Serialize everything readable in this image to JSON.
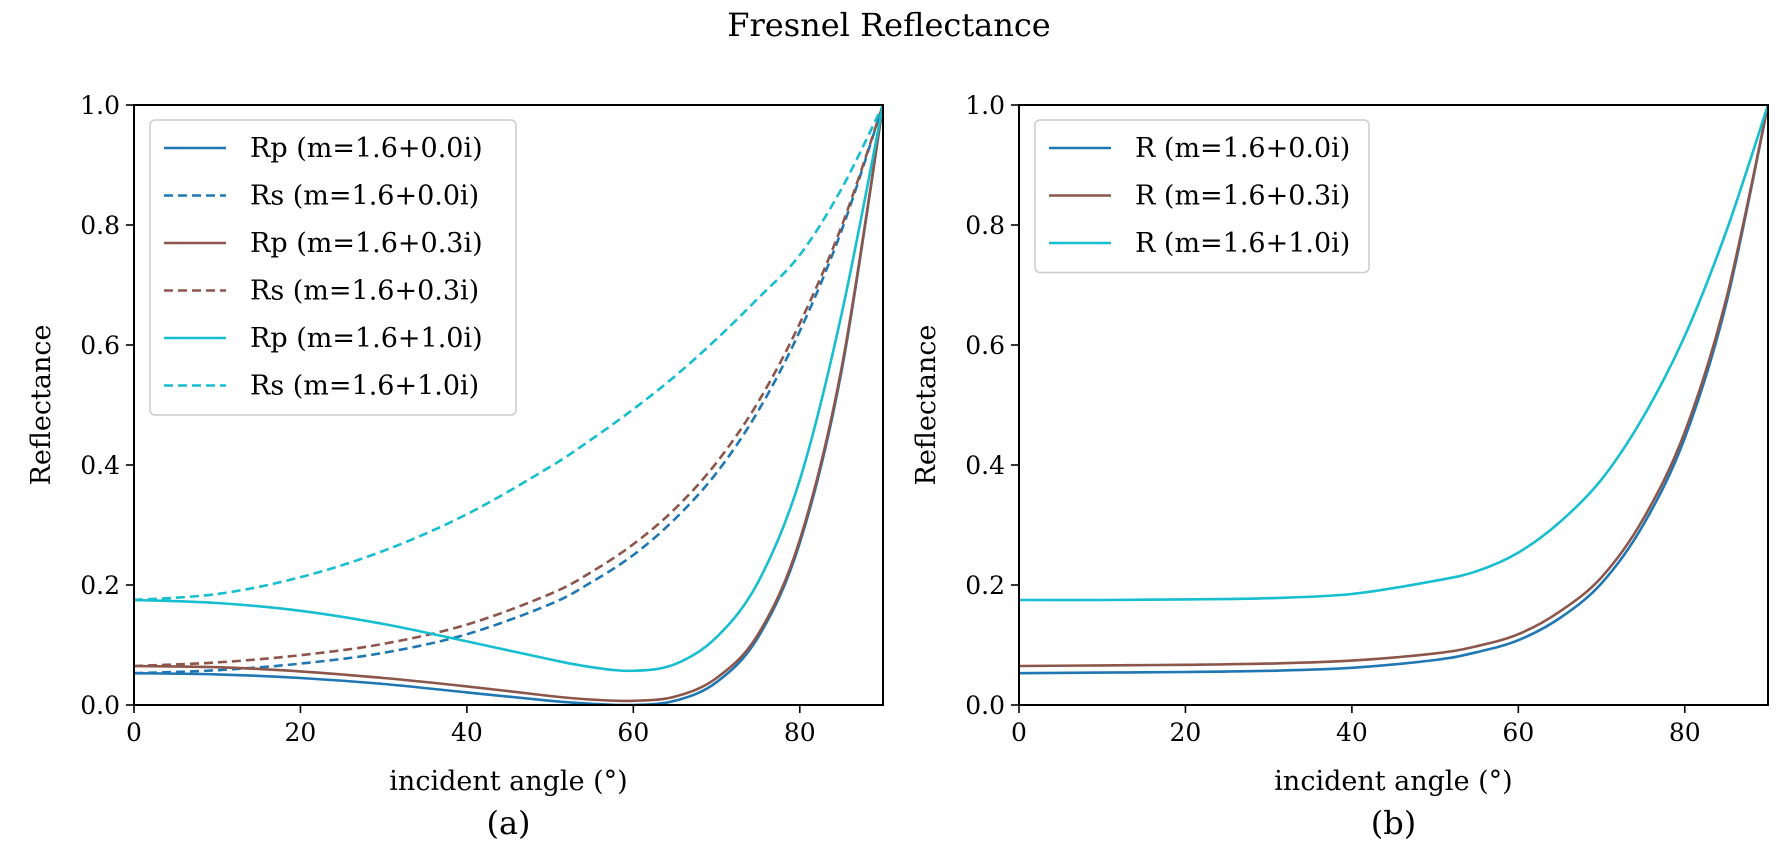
{
  "title": "Fresnel Reflectance",
  "colors": {
    "m_1_6_0_0": "#1f77b4",
    "m_1_6_0_3": "#8c564b",
    "m_1_6_1_0": "#17becf"
  },
  "chart_data": [
    {
      "type": "line",
      "panel_label": "(a)",
      "xlabel": "incident angle (°)",
      "ylabel": "Reflectance",
      "xlim": [
        0,
        90
      ],
      "ylim": [
        0,
        1
      ],
      "xticks": [
        "0",
        "20",
        "40",
        "60",
        "80"
      ],
      "yticks": [
        "0.0",
        "0.2",
        "0.4",
        "0.6",
        "0.8",
        "1.0"
      ],
      "grid": false,
      "legend_position": "top-left",
      "x": [
        0,
        10,
        20,
        30,
        40,
        50,
        55,
        60,
        65,
        70,
        75,
        80,
        85,
        90
      ],
      "series": [
        {
          "name": "Rp (m=1.6+0.0i)",
          "style": "solid",
          "color_key": "m_1_6_0_0",
          "values": [
            0.053,
            0.051,
            0.045,
            0.035,
            0.021,
            0.007,
            0.002,
            0.0,
            0.007,
            0.038,
            0.113,
            0.27,
            0.555,
            1.0
          ]
        },
        {
          "name": "Rs (m=1.6+0.0i)",
          "style": "dashed",
          "color_key": "m_1_6_0_0",
          "values": [
            0.053,
            0.058,
            0.069,
            0.087,
            0.118,
            0.168,
            0.205,
            0.25,
            0.31,
            0.387,
            0.49,
            0.623,
            0.79,
            1.0
          ]
        },
        {
          "name": "Rp (m=1.6+0.3i)",
          "style": "solid",
          "color_key": "m_1_6_0_3",
          "values": [
            0.065,
            0.063,
            0.056,
            0.045,
            0.031,
            0.015,
            0.009,
            0.007,
            0.014,
            0.045,
            0.118,
            0.275,
            0.56,
            1.0
          ]
        },
        {
          "name": "Rs (m=1.6+0.3i)",
          "style": "dashed",
          "color_key": "m_1_6_0_3",
          "values": [
            0.065,
            0.071,
            0.083,
            0.102,
            0.134,
            0.185,
            0.222,
            0.268,
            0.327,
            0.404,
            0.505,
            0.636,
            0.797,
            1.0
          ]
        },
        {
          "name": "Rp (m=1.6+1.0i)",
          "style": "solid",
          "color_key": "m_1_6_1_0",
          "values": [
            0.175,
            0.17,
            0.157,
            0.135,
            0.106,
            0.076,
            0.063,
            0.057,
            0.068,
            0.113,
            0.205,
            0.375,
            0.65,
            1.0
          ]
        },
        {
          "name": "Rs (m=1.6+1.0i)",
          "style": "dashed",
          "color_key": "m_1_6_1_0",
          "values": [
            0.175,
            0.185,
            0.213,
            0.257,
            0.318,
            0.397,
            0.443,
            0.493,
            0.548,
            0.61,
            0.678,
            0.75,
            0.86,
            1.0
          ]
        }
      ]
    },
    {
      "type": "line",
      "panel_label": "(b)",
      "xlabel": "incident angle (°)",
      "ylabel": "Reflectance",
      "xlim": [
        0,
        90
      ],
      "ylim": [
        0,
        1
      ],
      "xticks": [
        "0",
        "20",
        "40",
        "60",
        "80"
      ],
      "yticks": [
        "0.0",
        "0.2",
        "0.4",
        "0.6",
        "0.8",
        "1.0"
      ],
      "grid": false,
      "legend_position": "top-left",
      "x": [
        0,
        10,
        20,
        30,
        40,
        50,
        55,
        60,
        65,
        70,
        75,
        80,
        85,
        90
      ],
      "series": [
        {
          "name": "R (m=1.6+0.0i)",
          "style": "solid",
          "color_key": "m_1_6_0_0",
          "values": [
            0.053,
            0.054,
            0.055,
            0.057,
            0.062,
            0.075,
            0.088,
            0.108,
            0.145,
            0.203,
            0.3,
            0.445,
            0.67,
            1.0
          ]
        },
        {
          "name": "R (m=1.6+0.3i)",
          "style": "solid",
          "color_key": "m_1_6_0_3",
          "values": [
            0.065,
            0.066,
            0.067,
            0.069,
            0.074,
            0.086,
            0.098,
            0.118,
            0.156,
            0.213,
            0.31,
            0.455,
            0.678,
            1.0
          ]
        },
        {
          "name": "R (m=1.6+1.0i)",
          "style": "solid",
          "color_key": "m_1_6_1_0",
          "values": [
            0.175,
            0.175,
            0.176,
            0.178,
            0.185,
            0.207,
            0.223,
            0.254,
            0.305,
            0.376,
            0.48,
            0.615,
            0.79,
            1.0
          ]
        }
      ]
    }
  ]
}
